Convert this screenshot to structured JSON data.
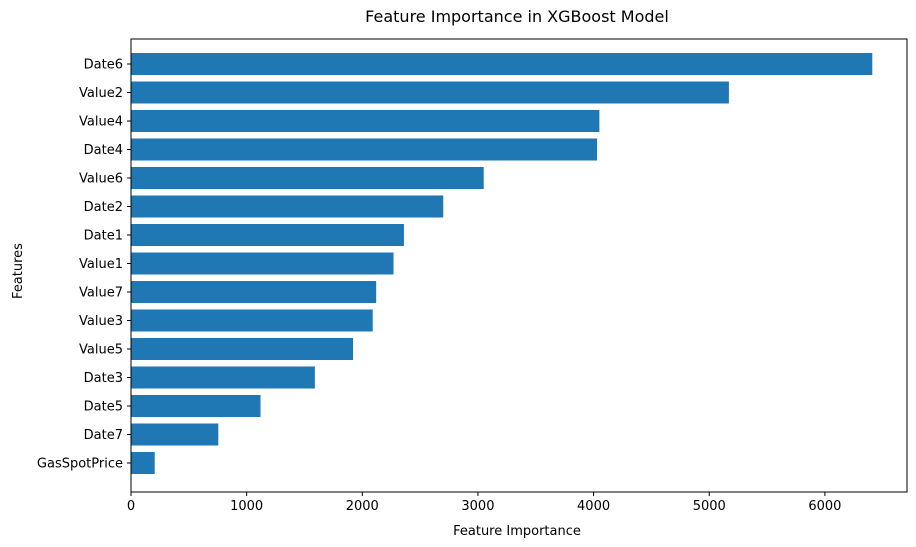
{
  "chart_data": {
    "type": "bar",
    "orientation": "horizontal",
    "title": "Feature Importance in XGBoost Model",
    "xlabel": "Feature Importance",
    "ylabel": "Features",
    "categories": [
      "Date6",
      "Value2",
      "Value4",
      "Date4",
      "Value6",
      "Date2",
      "Date1",
      "Value1",
      "Value7",
      "Value3",
      "Value5",
      "Date3",
      "Date5",
      "Date7",
      "GasSpotPrice"
    ],
    "values": [
      6410,
      5170,
      4050,
      4030,
      3050,
      2700,
      2360,
      2270,
      2120,
      2090,
      1920,
      1590,
      1120,
      755,
      205
    ],
    "xlim": [
      0,
      6710
    ],
    "xticks": [
      "0",
      "1000",
      "2000",
      "3000",
      "4000",
      "5000",
      "6000"
    ],
    "bar_color": "#1f77b4",
    "grid": false
  }
}
